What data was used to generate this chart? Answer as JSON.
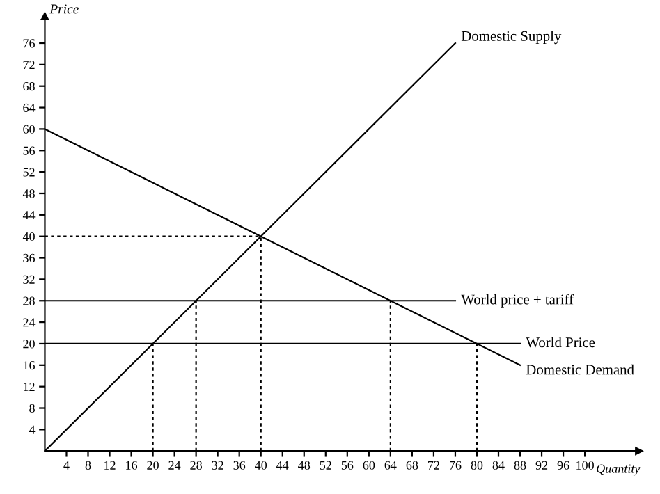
{
  "chart_data": {
    "type": "line",
    "xlabel": "Quantity",
    "ylabel": "Price",
    "xlim": [
      0,
      110
    ],
    "ylim": [
      0,
      81
    ],
    "xticks": [
      4,
      8,
      12,
      16,
      20,
      24,
      28,
      32,
      36,
      40,
      44,
      48,
      52,
      56,
      60,
      64,
      68,
      72,
      76,
      80,
      84,
      88,
      92,
      96,
      100
    ],
    "yticks": [
      4,
      8,
      12,
      16,
      20,
      24,
      28,
      32,
      36,
      40,
      44,
      48,
      52,
      56,
      60,
      64,
      68,
      72,
      76
    ],
    "grid": false,
    "legend": false,
    "marker": "none",
    "series": [
      {
        "name": "Domestic Supply",
        "color": "#000000",
        "x": [
          0,
          76
        ],
        "values": [
          0,
          76
        ],
        "line_style": "solid"
      },
      {
        "name": "Domestic Demand",
        "color": "#000000",
        "x": [
          0,
          88
        ],
        "values": [
          60,
          16
        ],
        "line_style": "solid"
      },
      {
        "name": "World price + tariff",
        "color": "#000000",
        "x": [
          0,
          76
        ],
        "values": [
          28,
          28
        ],
        "line_style": "solid"
      },
      {
        "name": "World Price",
        "color": "#000000",
        "x": [
          0,
          88
        ],
        "values": [
          20,
          20
        ],
        "line_style": "solid"
      },
      {
        "color": "#000000",
        "x": [
          0,
          40
        ],
        "values": [
          40,
          40
        ],
        "line_style": "dotted"
      },
      {
        "color": "#000000",
        "x": [
          40,
          40
        ],
        "values": [
          0,
          40
        ],
        "line_style": "dotted"
      },
      {
        "color": "#000000",
        "x": [
          20,
          20
        ],
        "values": [
          0,
          20
        ],
        "line_style": "dotted"
      },
      {
        "color": "#000000",
        "x": [
          28,
          28
        ],
        "values": [
          0,
          28
        ],
        "line_style": "dotted"
      },
      {
        "color": "#000000",
        "x": [
          64,
          64
        ],
        "values": [
          0,
          28
        ],
        "line_style": "dotted"
      },
      {
        "color": "#000000",
        "x": [
          80,
          80
        ],
        "values": [
          0,
          20
        ],
        "line_style": "dotted"
      }
    ]
  }
}
